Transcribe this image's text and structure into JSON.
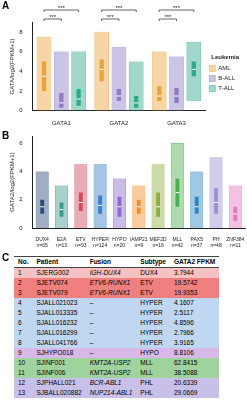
{
  "chart_data": [
    {
      "panel": "A",
      "type": "violin",
      "y_label": "GATA/log2(FPKM+1)",
      "categories": [
        "GATA1",
        "GATA2",
        "GATA3"
      ],
      "series": [
        {
          "name": "AML",
          "color": "#EAA23A",
          "values": [
            {
              "min": 0,
              "q1": 2,
              "median": 3.5,
              "q3": 5,
              "max": 7.5
            },
            {
              "min": 0,
              "q1": 3,
              "median": 4.2,
              "q3": 5.2,
              "max": 8
            },
            {
              "min": 0,
              "q1": 1,
              "median": 1.5,
              "q3": 2.5,
              "max": 6
            }
          ]
        },
        {
          "name": "B-ALL",
          "color": "#8E7CC3",
          "values": [
            {
              "min": 0,
              "q1": 0.3,
              "median": 0.8,
              "q3": 1.8,
              "max": 6
            },
            {
              "min": 0,
              "q1": 1,
              "median": 1.5,
              "q3": 2.2,
              "max": 6.5
            },
            {
              "min": 0,
              "q1": 0.8,
              "median": 1.5,
              "q3": 2.3,
              "max": 5.5
            }
          ]
        },
        {
          "name": "T-ALL",
          "color": "#2FA98C",
          "values": [
            {
              "min": 0,
              "q1": 0.5,
              "median": 1.2,
              "q3": 2.2,
              "max": 6
            },
            {
              "min": 0,
              "q1": 0.3,
              "median": 0.8,
              "q3": 1.5,
              "max": 5
            },
            {
              "min": 1,
              "q1": 3.5,
              "median": 4.2,
              "q3": 5,
              "max": 7
            }
          ]
        }
      ],
      "annotations": [
        {
          "category": "GATA1",
          "from": "AML",
          "to": "B-ALL",
          "text": "***"
        },
        {
          "category": "GATA1",
          "from": "AML",
          "to": "T-ALL",
          "text": "***"
        },
        {
          "category": "GATA2",
          "from": "AML",
          "to": "B-ALL",
          "text": "***"
        },
        {
          "category": "GATA2",
          "from": "AML",
          "to": "T-ALL",
          "text": "***"
        },
        {
          "category": "GATA3",
          "from": "AML",
          "to": "B-ALL",
          "text": "***"
        },
        {
          "category": "GATA3",
          "from": "AML",
          "to": "T-ALL",
          "text": "***"
        }
      ],
      "ylim": [
        0,
        9
      ],
      "yticks": [
        0,
        2,
        4,
        6,
        8
      ],
      "grid": false,
      "legend": "right",
      "legend_title": "Leukemia"
    },
    {
      "panel": "B",
      "type": "violin",
      "y_label": "GATA2/log2(FPKM+1)",
      "categories": [
        [
          "DUX4",
          "n=65"
        ],
        [
          "E2A",
          "n=13"
        ],
        [
          "ETV",
          "n=93"
        ],
        [
          "HYPER",
          "n=124"
        ],
        [
          "HYPO",
          "n=20"
        ],
        [
          "iAMP21",
          "n=9"
        ],
        [
          "MEF2D",
          "n=16"
        ],
        [
          "MLL",
          "n=42"
        ],
        [
          "PAX5",
          "n=37"
        ],
        [
          "PH",
          "n=48"
        ],
        [
          "ZNF384",
          "n=11"
        ]
      ],
      "values": [
        {
          "min": 0,
          "q1": 1,
          "median": 1.5,
          "q3": 2,
          "max": 4
        },
        {
          "min": 0,
          "q1": 0.8,
          "median": 1.3,
          "q3": 1.8,
          "max": 3
        },
        {
          "min": 0,
          "q1": 1.2,
          "median": 1.8,
          "q3": 2.5,
          "max": 4.5
        },
        {
          "min": 0,
          "q1": 1,
          "median": 1.6,
          "q3": 2.3,
          "max": 4.5
        },
        {
          "min": 0,
          "q1": 0.8,
          "median": 1.5,
          "q3": 2.2,
          "max": 3.5
        },
        {
          "min": 0,
          "q1": 1,
          "median": 1.5,
          "q3": 2,
          "max": 3
        },
        {
          "min": 0,
          "q1": 0.8,
          "median": 1.5,
          "q3": 2.5,
          "max": 4.5
        },
        {
          "min": 0,
          "q1": 1.5,
          "median": 2.5,
          "q3": 3.5,
          "max": 6
        },
        {
          "min": 0,
          "q1": 1,
          "median": 1.5,
          "q3": 2.2,
          "max": 4
        },
        {
          "min": 0,
          "q1": 1,
          "median": 1.8,
          "q3": 2.8,
          "max": 5
        },
        {
          "min": 0,
          "q1": 0.5,
          "median": 1,
          "q3": 1.5,
          "max": 3
        }
      ],
      "colors": [
        "#2F4B7C",
        "#3E9A8E",
        "#D1495B",
        "#3A7DC9",
        "#8E6AC8",
        "#F28E2B",
        "#8FAF3C",
        "#4CAF50",
        "#2E86C1",
        "#9C8FD0",
        "#E377C2"
      ],
      "ylim": [
        0,
        6.5
      ],
      "yticks": [
        0,
        2,
        4,
        6
      ],
      "grid": false
    }
  ],
  "table": {
    "panel": "C",
    "header": [
      "No.",
      "Patient",
      "Fusion",
      "Subtype",
      "GATA2 FPKM"
    ],
    "rows": [
      [
        "1",
        "SJERG002",
        "IGH-DUX4",
        "DUX4",
        "3.7944"
      ],
      [
        "2",
        "SJETV074",
        "ETV6-RUNX1",
        "ETV",
        "19.5742"
      ],
      [
        "3",
        "SJETV079",
        "ETV6-RUNX1",
        "ETV",
        "19.9353"
      ],
      [
        "4",
        "SJALL021023",
        "–",
        "HYPER",
        "4.1607"
      ],
      [
        "5",
        "SJALL013335",
        "–",
        "HYPER",
        "2.5117"
      ],
      [
        "6",
        "SJALL016232",
        "–",
        "HYPER",
        "4.8596"
      ],
      [
        "7",
        "SJALL016299",
        "–",
        "HYPER",
        "2.7966"
      ],
      [
        "8",
        "SJALL041766",
        "–",
        "HYPER",
        "3.9165"
      ],
      [
        "9",
        "SJHYPO018",
        "–",
        "HYPO",
        "8.8106"
      ],
      [
        "10",
        "SJINF001",
        "KMT2A-USP2",
        "MLL",
        "62.8415"
      ],
      [
        "11",
        "SJINF006",
        "KMT2A-USP2",
        "MLL",
        "38.5088"
      ],
      [
        "12",
        "SJPHALL021",
        "BCR-ABL1",
        "PHL",
        "20.6339"
      ],
      [
        "13",
        "SJBALL020882",
        "NUP214-ABL1",
        "PHL",
        "29.0669"
      ]
    ],
    "row_colors": [
      "#F4C2C2",
      "#F08080",
      "#F08080",
      "#BFD7F0",
      "#BFD7F0",
      "#BFD7F0",
      "#BFD7F0",
      "#BFD7F0",
      "#D7B8E8",
      "#9ED39E",
      "#9ED39E",
      "#C8C0E8",
      "#C8C0E8"
    ]
  }
}
